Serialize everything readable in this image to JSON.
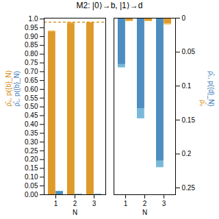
{
  "chart_data": [
    {
      "type": "bar",
      "title": "M2: |0⟩→b, |1⟩→d",
      "categories": [
        "1",
        "2",
        "3"
      ],
      "xlabel": "N",
      "ylabel": [
        {
          "text": "ρ̂₀, p({b}_N)",
          "color": "#d4860a"
        },
        {
          "text": "ρ̂₁, p({b}_N)",
          "color": "#3a7ab5"
        }
      ],
      "series": [
        {
          "color": "#f5c878",
          "values": [
            0.933,
            0.982,
            0.982
          ],
          "measured_color": "#d4860a",
          "measured_values": [
            0.928,
            0.975,
            0.978
          ]
        },
        {
          "color": "#7ab8d9",
          "values": [
            0.02,
            0.003,
            0.003
          ],
          "measured_color": "#3a7ab5",
          "measured_values": [
            0.018,
            0.002,
            0.002
          ]
        }
      ],
      "reference_line": {
        "value": 0.982,
        "color": "#d4860a",
        "line_style": "dashed"
      },
      "ylim": [
        0,
        1.005
      ],
      "yticks": [
        {
          "value": 0,
          "label": "0.00"
        },
        0.05,
        {
          "value": 0.1,
          "label": "0.10"
        },
        0.15,
        {
          "value": 0.2,
          "label": "0.20"
        },
        0.25,
        {
          "value": 0.3,
          "label": "0.30"
        },
        0.35,
        {
          "value": 0.4,
          "label": "0.40"
        },
        0.45,
        {
          "value": 0.5,
          "label": "0.50"
        },
        0.55,
        {
          "value": 0.6,
          "label": "0.60"
        },
        0.65,
        {
          "value": 0.7,
          "label": "0.70"
        },
        0.75,
        {
          "value": 0.8,
          "label": "0.80"
        },
        0.85,
        {
          "value": 0.9,
          "label": "0.90"
        },
        0.95,
        {
          "value": 1.0,
          "label": "1.0"
        }
      ]
    },
    {
      "type": "bar",
      "categories": [
        "1",
        "2",
        "3"
      ],
      "xlabel": "N",
      "ylabel": [
        {
          "text": "ρ̂₁, p({d}_N)",
          "color": "#3a7ab5"
        },
        {
          "text": "ρ̂₀",
          "color": "#d4860a"
        }
      ],
      "series": [
        {
          "color": "#7ab8d9",
          "values": [
            0.073,
            0.148,
            0.22
          ],
          "measured_color": "#3a7ab5",
          "measured_values": [
            0.068,
            0.133,
            0.21
          ]
        },
        {
          "color": "#f5c878",
          "values": [
            0.005,
            0.005,
            0.01
          ],
          "measured_color": "#d4860a",
          "measured_values": [
            0.004,
            0.004,
            0.008
          ]
        }
      ],
      "ylim": [
        0.26,
        0
      ],
      "yticks": [
        0,
        0.05,
        0.1,
        0.15,
        0.2,
        0.25
      ]
    }
  ]
}
